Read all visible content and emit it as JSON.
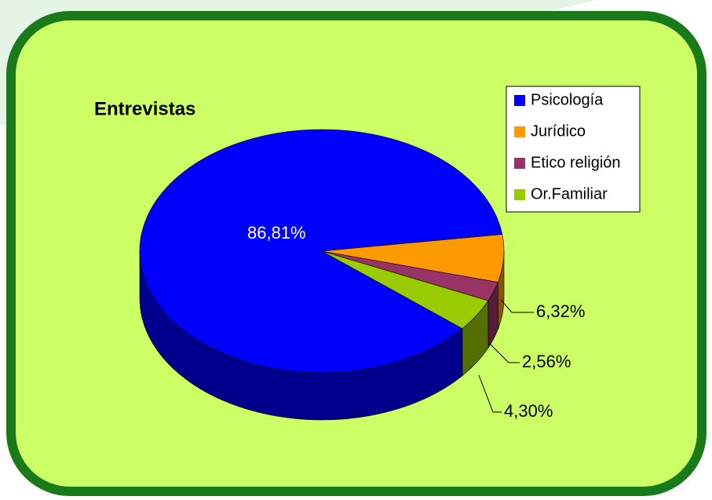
{
  "chart_data": {
    "type": "pie3d",
    "title": "Entrevistas",
    "categories": [
      "Psicología",
      "Jurídico",
      "Etico religión",
      "Or.Familiar"
    ],
    "values": [
      86.81,
      6.32,
      2.56,
      4.3
    ],
    "value_labels": [
      "86,81%",
      "6,32%",
      "2,56%",
      "4,30%"
    ],
    "colors": [
      "#0000ff",
      "#ff9900",
      "#993366",
      "#99cc00"
    ],
    "legend": "top-right"
  }
}
